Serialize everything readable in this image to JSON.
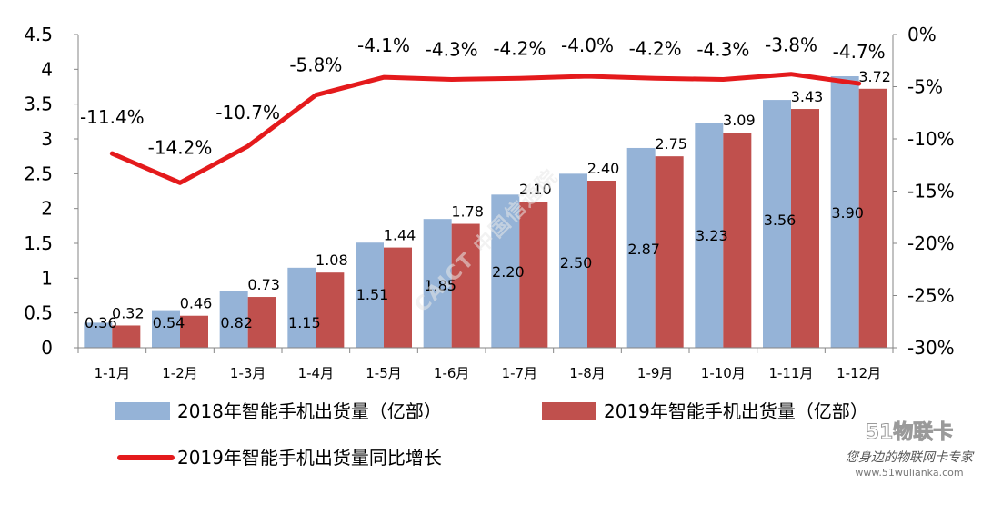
{
  "chart_data": {
    "type": "bar+line",
    "categories": [
      "1-1月",
      "1-2月",
      "1-3月",
      "1-4月",
      "1-5月",
      "1-6月",
      "1-7月",
      "1-8月",
      "1-9月",
      "1-10月",
      "1-11月",
      "1-12月"
    ],
    "series": [
      {
        "name": "2018年智能手机出货量（亿部）",
        "type": "bar",
        "axis": "left",
        "color": "#95b3d7",
        "values": [
          0.36,
          0.54,
          0.82,
          1.15,
          1.51,
          1.85,
          2.2,
          2.5,
          2.87,
          3.23,
          3.56,
          3.9
        ],
        "labels": [
          "0.36",
          "0.54",
          "0.82",
          "1.15",
          "1.51",
          "1.85",
          "2.20",
          "2.50",
          "2.87",
          "3.23",
          "3.56",
          "3.90"
        ]
      },
      {
        "name": "2019年智能手机出货量（亿部）",
        "type": "bar",
        "axis": "left",
        "color": "#c0504d",
        "values": [
          0.32,
          0.46,
          0.73,
          1.08,
          1.44,
          1.78,
          2.1,
          2.4,
          2.75,
          3.09,
          3.43,
          3.72
        ],
        "labels": [
          "0.32",
          "0.46",
          "0.73",
          "1.08",
          "1.44",
          "1.78",
          "2.10",
          "2.40",
          "2.75",
          "3.09",
          "3.43",
          "3.72"
        ]
      },
      {
        "name": "2019年智能手机出货量同比增长",
        "type": "line",
        "axis": "right",
        "color": "#e41a1c",
        "values": [
          -11.4,
          -14.2,
          -10.7,
          -5.8,
          -4.1,
          -4.3,
          -4.2,
          -4.0,
          -4.2,
          -4.3,
          -3.8,
          -4.7
        ],
        "labels": [
          "-11.4%",
          "-14.2%",
          "-10.7%",
          "-5.8%",
          "-4.1%",
          "-4.3%",
          "-4.2%",
          "-4.0%",
          "-4.2%",
          "-4.3%",
          "-3.8%",
          "-4.7%"
        ]
      }
    ],
    "left_axis": {
      "ylim": [
        0,
        4.5
      ],
      "ticks": [
        "0",
        "0.5",
        "1",
        "1.5",
        "2",
        "2.5",
        "3",
        "3.5",
        "4",
        "4.5"
      ]
    },
    "right_axis": {
      "ylim": [
        -30,
        0
      ],
      "ticks": [
        "-30%",
        "-25%",
        "-20%",
        "-15%",
        "-10%",
        "-5%",
        "0%"
      ]
    },
    "grid": false,
    "legend_placement": "bottom"
  },
  "watermark": {
    "center": "CAICT 中国信通院",
    "brand": "51物联卡",
    "slogan": "您身边的物联网卡专家",
    "url": "www.51wulianka.com"
  }
}
